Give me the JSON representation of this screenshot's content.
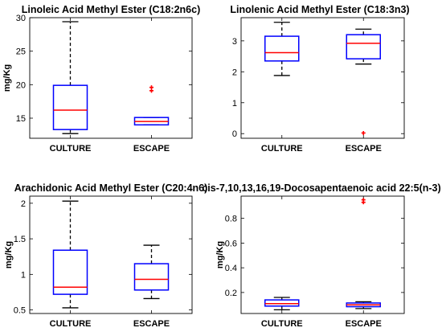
{
  "style": {
    "box_color": "#0000ff",
    "median_color": "#ff0000",
    "whisker_color": "#000000",
    "outlier_color": "#ff0000",
    "axes_color": "#000000"
  },
  "chart_data": [
    {
      "type": "box",
      "title": "Linoleic Acid Methyl Ester (C18:2n6c)",
      "ylabel": "mg/Kg",
      "xlabel": "",
      "ylim": [
        12,
        30
      ],
      "yticks": [
        15,
        20,
        25,
        30
      ],
      "ytick_labels": [
        "15",
        "20",
        "25",
        "30"
      ],
      "categories": [
        "CULTURE",
        "ESCAPE"
      ],
      "boxes": [
        {
          "category": "CULTURE",
          "whisker_low": 12.7,
          "q1": 13.3,
          "median": 16.2,
          "q3": 19.9,
          "whisker_high": 29.4,
          "outliers": []
        },
        {
          "category": "ESCAPE",
          "whisker_low": 14.0,
          "q1": 14.0,
          "median": 14.5,
          "q3": 15.1,
          "whisker_high": 15.1,
          "outliers": [
            19.1,
            19.6
          ]
        }
      ]
    },
    {
      "type": "box",
      "title": "Linolenic Acid Methyl Ester (C18:3n3)",
      "ylabel": "",
      "xlabel": "",
      "ylim": [
        -0.15,
        3.75
      ],
      "yticks": [
        0,
        1,
        2,
        3
      ],
      "ytick_labels": [
        "0",
        "1",
        "2",
        "3"
      ],
      "categories": [
        "CULTURE",
        "ESCAPE"
      ],
      "boxes": [
        {
          "category": "CULTURE",
          "whisker_low": 1.88,
          "q1": 2.35,
          "median": 2.62,
          "q3": 3.15,
          "whisker_high": 3.6,
          "outliers": []
        },
        {
          "category": "ESCAPE",
          "whisker_low": 2.25,
          "q1": 2.42,
          "median": 2.92,
          "q3": 3.2,
          "whisker_high": 3.38,
          "outliers": [
            0.02
          ]
        }
      ]
    },
    {
      "type": "box",
      "title": "Arachidonic Acid Methyl Ester (C20:4n6)",
      "ylabel": "mg/Kg",
      "xlabel": "",
      "ylim": [
        0.45,
        2.1
      ],
      "yticks": [
        0.5,
        1,
        1.5,
        2
      ],
      "ytick_labels": [
        "0.5",
        "1",
        "1.5",
        "2"
      ],
      "categories": [
        "CULTURE",
        "ESCAPE"
      ],
      "boxes": [
        {
          "category": "CULTURE",
          "whisker_low": 0.53,
          "q1": 0.72,
          "median": 0.82,
          "q3": 1.34,
          "whisker_high": 2.03,
          "outliers": []
        },
        {
          "category": "ESCAPE",
          "whisker_low": 0.66,
          "q1": 0.78,
          "median": 0.93,
          "q3": 1.15,
          "whisker_high": 1.41,
          "outliers": []
        }
      ]
    },
    {
      "type": "box",
      "title": "cis-7,10,13,16,19-Docosapentaenoic acid 22:5(n-3)",
      "ylabel": "mg/Kg",
      "xlabel": "",
      "ylim": [
        0.03,
        0.98
      ],
      "yticks": [
        0.2,
        0.4,
        0.6,
        0.8
      ],
      "ytick_labels": [
        "0.2",
        "0.4",
        "0.6",
        "0.8"
      ],
      "categories": [
        "CULTURE",
        "ESCAPE"
      ],
      "boxes": [
        {
          "category": "CULTURE",
          "whisker_low": 0.06,
          "q1": 0.09,
          "median": 0.11,
          "q3": 0.14,
          "whisker_high": 0.16,
          "outliers": []
        },
        {
          "category": "ESCAPE",
          "whisker_low": 0.07,
          "q1": 0.085,
          "median": 0.1,
          "q3": 0.115,
          "whisker_high": 0.125,
          "outliers": [
            0.95,
            0.93
          ]
        }
      ]
    }
  ]
}
